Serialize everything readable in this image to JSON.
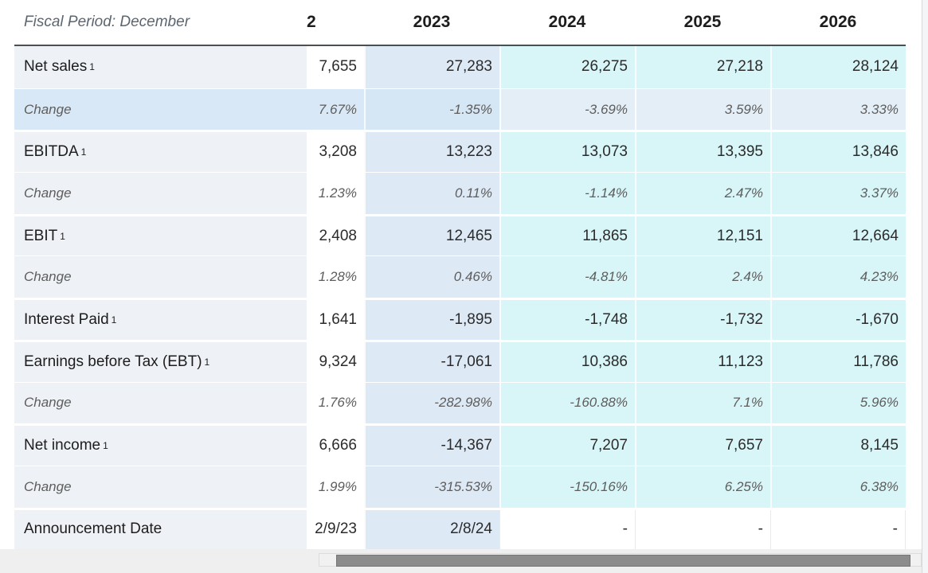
{
  "header": {
    "fiscal_period_label": "Fiscal Period: December",
    "columns": [
      "2",
      "2023",
      "2024",
      "2025",
      "2026"
    ]
  },
  "rows": [
    {
      "label": "Net sales",
      "sup": "1",
      "values": [
        "7,655",
        "27,283",
        "26,275",
        "27,218",
        "28,124"
      ]
    },
    {
      "label": "Change",
      "values": [
        "7.67%",
        "-1.35%",
        "-3.69%",
        "3.59%",
        "3.33%"
      ]
    },
    {
      "label": "EBITDA",
      "sup": "1",
      "values": [
        "3,208",
        "13,223",
        "13,073",
        "13,395",
        "13,846"
      ]
    },
    {
      "label": "Change",
      "values": [
        "1.23%",
        "0.11%",
        "-1.14%",
        "2.47%",
        "3.37%"
      ]
    },
    {
      "label": "EBIT",
      "sup": "1",
      "values": [
        "2,408",
        "12,465",
        "11,865",
        "12,151",
        "12,664"
      ]
    },
    {
      "label": "Change",
      "values": [
        "1.28%",
        "0.46%",
        "-4.81%",
        "2.4%",
        "4.23%"
      ]
    },
    {
      "label": "Interest Paid",
      "sup": "1",
      "values": [
        "1,641",
        "-1,895",
        "-1,748",
        "-1,732",
        "-1,670"
      ]
    },
    {
      "label": "Earnings before Tax (EBT)",
      "sup": "1",
      "values": [
        "9,324",
        "-17,061",
        "10,386",
        "11,123",
        "11,786"
      ]
    },
    {
      "label": "Change",
      "values": [
        "1.76%",
        "-282.98%",
        "-160.88%",
        "7.1%",
        "5.96%"
      ]
    },
    {
      "label": "Net income",
      "sup": "1",
      "values": [
        "6,666",
        "-14,367",
        "7,207",
        "7,657",
        "8,145"
      ]
    },
    {
      "label": "Change",
      "values": [
        "1.99%",
        "-315.53%",
        "-150.16%",
        "6.25%",
        "6.38%"
      ]
    },
    {
      "label": "Announcement Date",
      "values": [
        "2/9/23",
        "2/8/24",
        "-",
        "-",
        "-"
      ]
    }
  ],
  "colors": {
    "label_column_bg": "#eef1f5",
    "fiscal_year_column_highlight": "#dee9f6",
    "estimate_columns_highlight": "#d8f6f8",
    "hovered_row_highlight": "#d9e8f6",
    "header_border": "#4c4f52",
    "scrollbar_thumb": "#8c8c8c"
  }
}
